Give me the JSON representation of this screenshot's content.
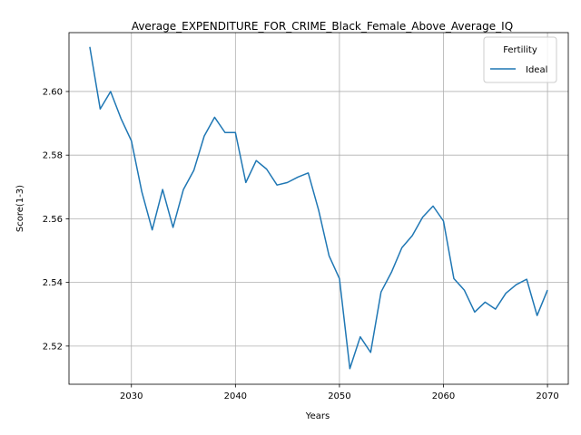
{
  "chart_data": {
    "type": "line",
    "title": "Average_EXPENDITURE_FOR_CRIME_Black_Female_Above_Average_IQ",
    "xlabel": "Years",
    "ylabel": "Score(1-3)",
    "xlim": [
      2024,
      2072
    ],
    "ylim": [
      2.508,
      2.6185
    ],
    "xticks": [
      2030,
      2040,
      2050,
      2060,
      2070
    ],
    "yticks": [
      2.52,
      2.54,
      2.56,
      2.58,
      2.6
    ],
    "ytick_labels": [
      "2.52",
      "2.54",
      "2.56",
      "2.58",
      "2.60"
    ],
    "grid": true,
    "legend": {
      "title": "Fertility",
      "placement": "top-right"
    },
    "series": [
      {
        "name": "Ideal",
        "color": "#1f77b4",
        "x": [
          2026,
          2027,
          2028,
          2029,
          2030,
          2031,
          2032,
          2033,
          2034,
          2035,
          2036,
          2037,
          2038,
          2039,
          2040,
          2041,
          2042,
          2043,
          2044,
          2045,
          2046,
          2047,
          2048,
          2049,
          2050,
          2051,
          2052,
          2053,
          2054,
          2055,
          2056,
          2057,
          2058,
          2059,
          2060,
          2061,
          2062,
          2063,
          2064,
          2065,
          2066,
          2067,
          2068,
          2069,
          2070
        ],
        "values": [
          2.614,
          2.5945,
          2.6,
          2.5915,
          2.5845,
          2.5685,
          2.5565,
          2.5692,
          2.5573,
          2.5692,
          2.5752,
          2.586,
          2.5919,
          2.5871,
          2.5871,
          2.5714,
          2.5783,
          2.5756,
          2.5706,
          2.5714,
          2.5731,
          2.5744,
          2.5627,
          2.5484,
          2.5412,
          2.5129,
          2.5229,
          2.518,
          2.537,
          2.5432,
          2.5509,
          2.5547,
          2.5605,
          2.564,
          2.5593,
          2.5412,
          2.5376,
          2.5307,
          2.5338,
          2.5316,
          2.5366,
          2.5393,
          2.541,
          2.5296,
          2.5376
        ]
      }
    ]
  }
}
